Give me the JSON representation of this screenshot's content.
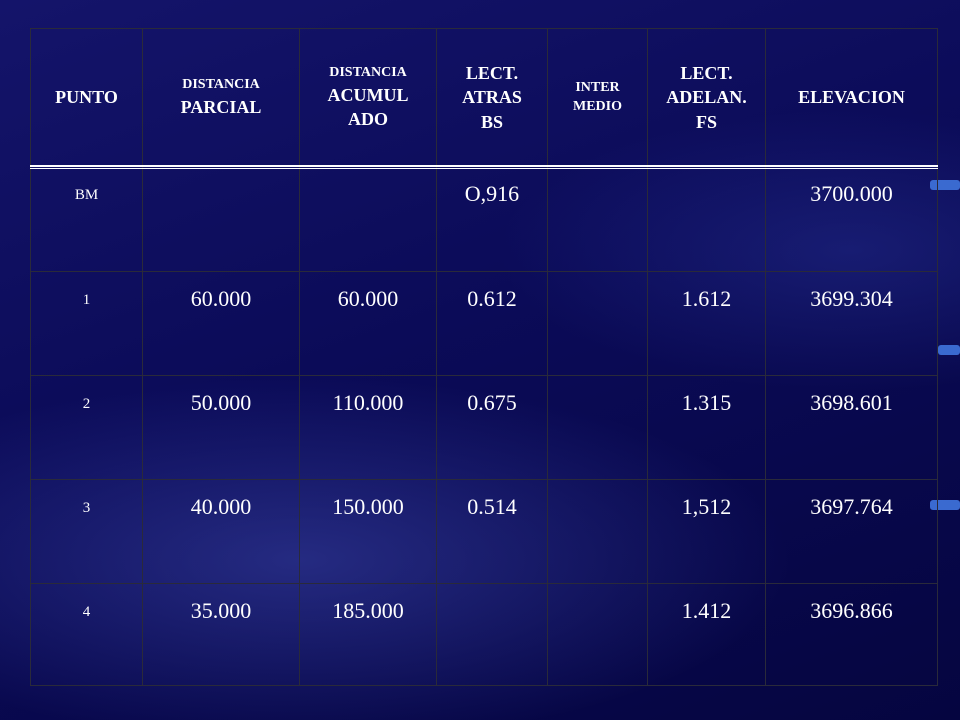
{
  "table": {
    "header": [
      [
        "PUNTO"
      ],
      [
        "DISTANCIA",
        "PARCIAL"
      ],
      [
        "DISTANCIA",
        "ACUMUL",
        "ADO"
      ],
      [
        "LECT.",
        "ATRAS",
        "BS"
      ],
      [
        "INTER",
        "MEDIO"
      ],
      [
        "LECT.",
        "ADELAN.",
        "FS"
      ],
      [
        "ELEVACION"
      ]
    ],
    "rows": [
      [
        "BM",
        null,
        null,
        "O,916",
        null,
        null,
        "3700.000"
      ],
      [
        "1",
        "60.000",
        "60.000",
        "0.612",
        null,
        "1.612",
        "3699.304"
      ],
      [
        "2",
        "50.000",
        "110.000",
        "0.675",
        null,
        "1.315",
        "3698.601"
      ],
      [
        "3",
        "40.000",
        "150.000",
        "0.514",
        null,
        "1,512",
        "3697.764"
      ],
      [
        "4",
        "35.000",
        "185.000",
        null,
        null,
        "1.412",
        "3696.866"
      ]
    ]
  }
}
